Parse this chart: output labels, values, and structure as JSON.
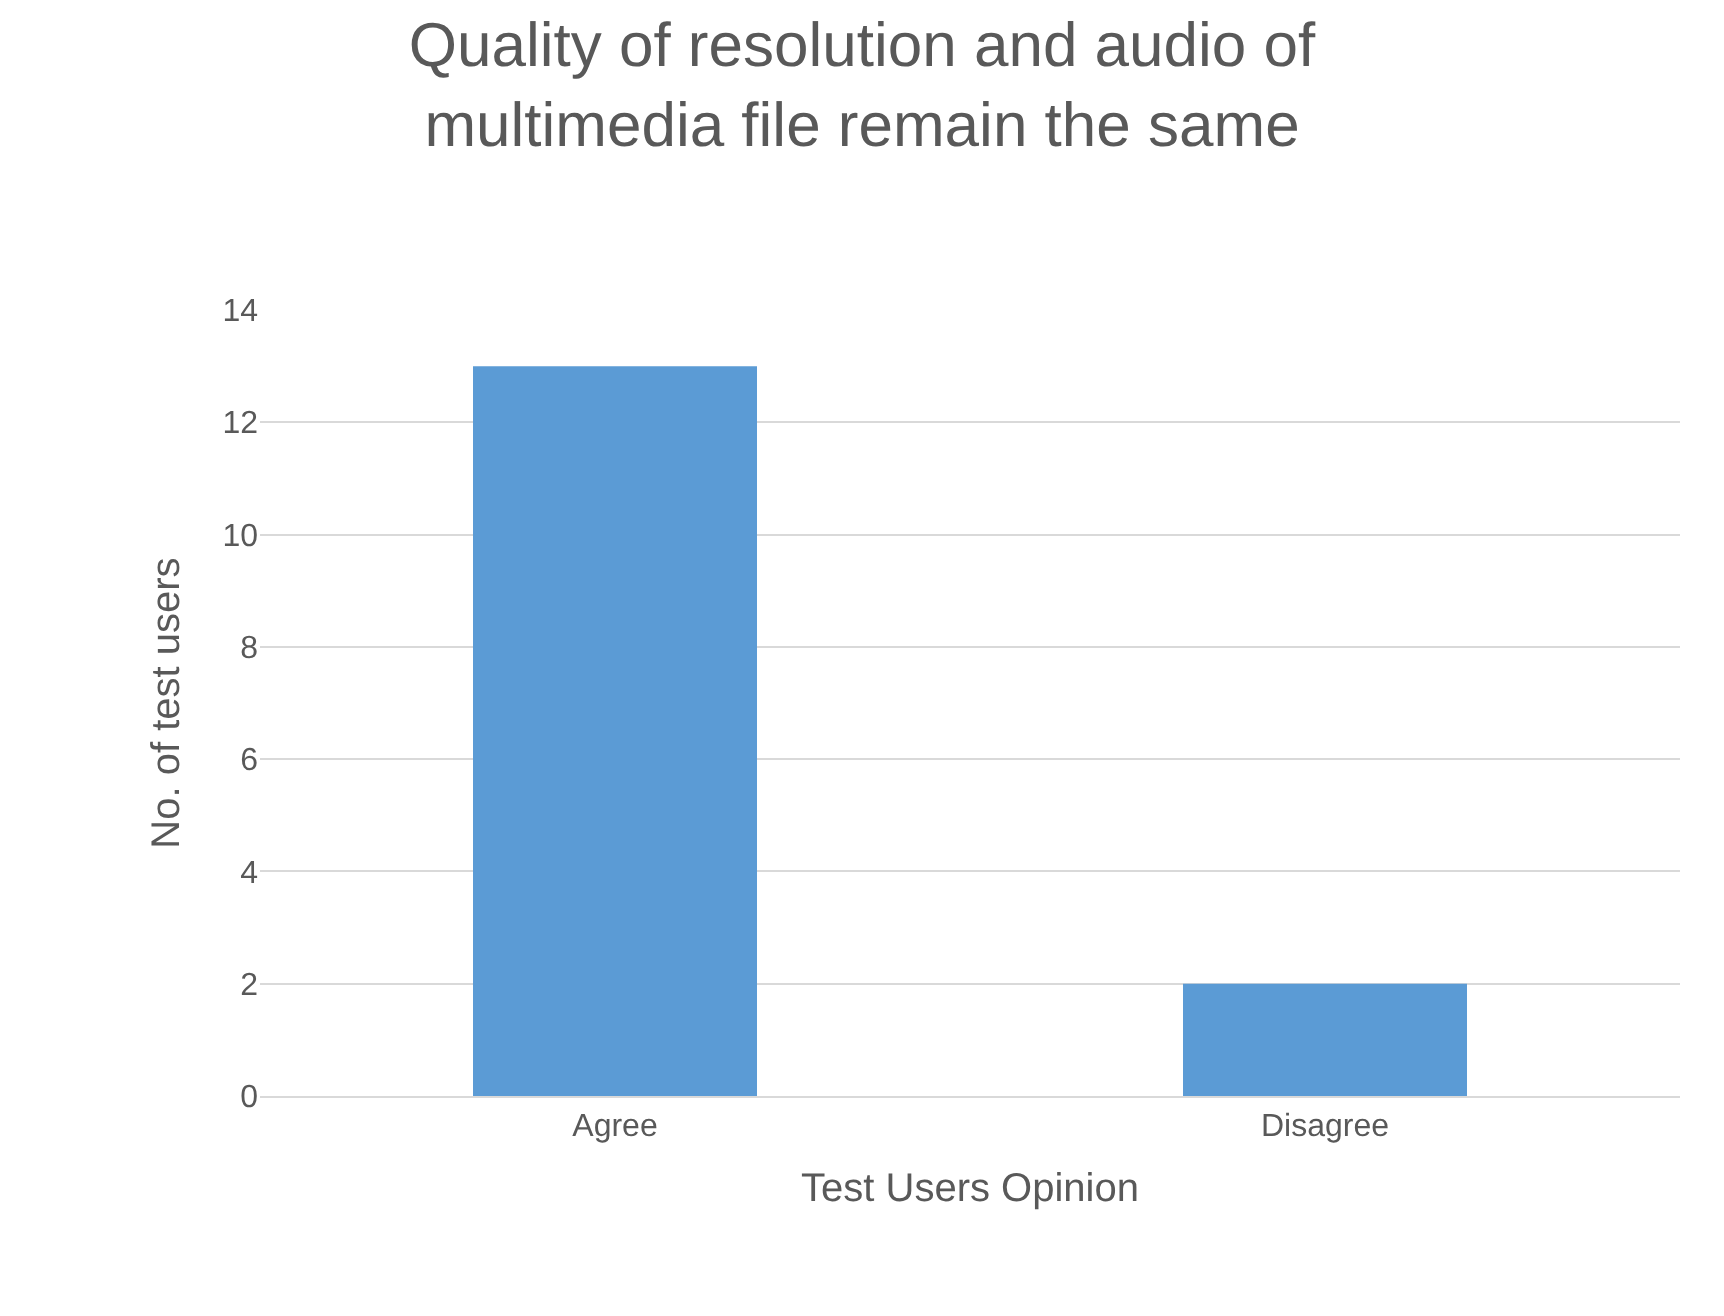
{
  "chart_data": {
    "type": "bar",
    "title": "Quality of resolution and audio of multimedia file remain the same",
    "categories": [
      "Agree",
      "Disagree"
    ],
    "values": [
      13,
      2
    ],
    "color": "#5b9bd5",
    "xlabel": "Test Users Opinion",
    "ylabel": "No. of test users",
    "ylim": [
      0,
      14
    ],
    "yticks": [
      0,
      2,
      4,
      6,
      8,
      10,
      12,
      14
    ],
    "grid": "y"
  }
}
